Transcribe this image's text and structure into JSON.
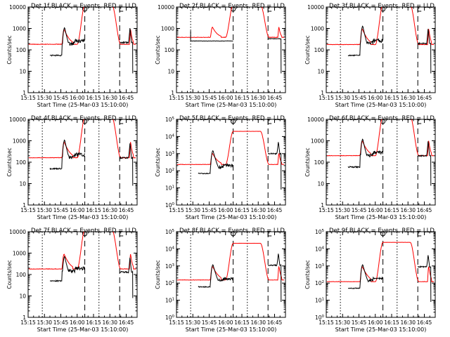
{
  "chart_data": {
    "type": "line",
    "layout": "3x3 grid of panels",
    "xlabel": "Start Time (25-Mar-03 15:10:00)",
    "ylabel": "Counts/sec",
    "x_ticks": [
      "15:15",
      "15:30",
      "15:45",
      "16:00",
      "16:15",
      "16:30",
      "16:45"
    ],
    "x_range_min": [
      5,
      105
    ],
    "y_scale": "log",
    "dotted_lines_min": [
      18,
      70
    ],
    "dashed_lines_min": [
      57,
      89
    ],
    "attenuator_markers": [
      {
        "shape": "circle",
        "x_min": 57
      },
      {
        "shape": "step",
        "x_min": 89
      }
    ],
    "series_colors": {
      "events": "#000000",
      "lld": "#ff0000"
    },
    "panels": [
      {
        "title": "Det 1f BLACK = Events, RED = LLD",
        "y_ticks": [
          "1",
          "10",
          "100",
          "1000",
          "10000"
        ],
        "red_base": 180,
        "red_peak": 12000,
        "black_base": 55,
        "black_bump": 1100,
        "black_side": 200,
        "black_seg2": 220
      },
      {
        "title": "Det 2f BLACK = Events, RED = LLD",
        "y_ticks": [
          "1",
          "10",
          "100",
          "1000",
          "10000"
        ],
        "red_base": 380,
        "red_peak": 13000,
        "black_base": 260,
        "black_bump": 260,
        "black_side": 350,
        "black_seg2": 330
      },
      {
        "title": "Det 3f BLACK = Events, RED = LLD",
        "y_ticks": [
          "1",
          "10",
          "100",
          "1000",
          "10000"
        ],
        "red_base": 175,
        "red_peak": 13000,
        "black_base": 55,
        "black_bump": 1300,
        "black_side": 210,
        "black_seg2": 200
      },
      {
        "title": "Det 4f BLACK = Events, RED = LLD",
        "y_ticks": [
          "1",
          "10",
          "100",
          "1000",
          "10000"
        ],
        "red_base": 160,
        "red_peak": 12000,
        "black_base": 50,
        "black_bump": 1100,
        "black_side": 180,
        "black_seg2": 160
      },
      {
        "title": "Det 5f BLACK = Events, RED = LLD",
        "y_ticks": [
          "10^0",
          "10^1",
          "10^2",
          "10^3",
          "10^4",
          "10^5"
        ],
        "red_base": 230,
        "red_peak": 20000,
        "black_base": 70,
        "black_bump": 1500,
        "black_side": 160,
        "black_seg2": 1000
      },
      {
        "title": "Det 6f BLACK = Events, RED = LLD",
        "y_ticks": [
          "1",
          "10",
          "100",
          "1000",
          "10000"
        ],
        "red_base": 200,
        "red_peak": 14000,
        "black_base": 60,
        "black_bump": 1200,
        "black_side": 220,
        "black_seg2": 200
      },
      {
        "title": "Det 7f BLACK = Events, RED = LLD",
        "y_ticks": [
          "1",
          "10",
          "100",
          "1000",
          "10000"
        ],
        "red_base": 180,
        "red_peak": 12000,
        "black_base": 50,
        "black_bump": 700,
        "black_side": 150,
        "black_seg2": 130
      },
      {
        "title": "Det 8f BLACK = Events, RED = LLD",
        "y_ticks": [
          "10^0",
          "10^1",
          "10^2",
          "10^3",
          "10^4",
          "10^5"
        ],
        "red_base": 150,
        "red_peak": 21000,
        "black_base": 60,
        "black_bump": 1200,
        "black_side": 140,
        "black_seg2": 1100
      },
      {
        "title": "Det 9f BLACK = Events, RED = LLD",
        "y_ticks": [
          "10^0",
          "10^1",
          "10^2",
          "10^3",
          "10^4",
          "10^5"
        ],
        "red_base": 120,
        "red_peak": 24000,
        "black_base": 50,
        "black_bump": 1200,
        "black_side": 140,
        "black_seg2": 900
      }
    ]
  }
}
